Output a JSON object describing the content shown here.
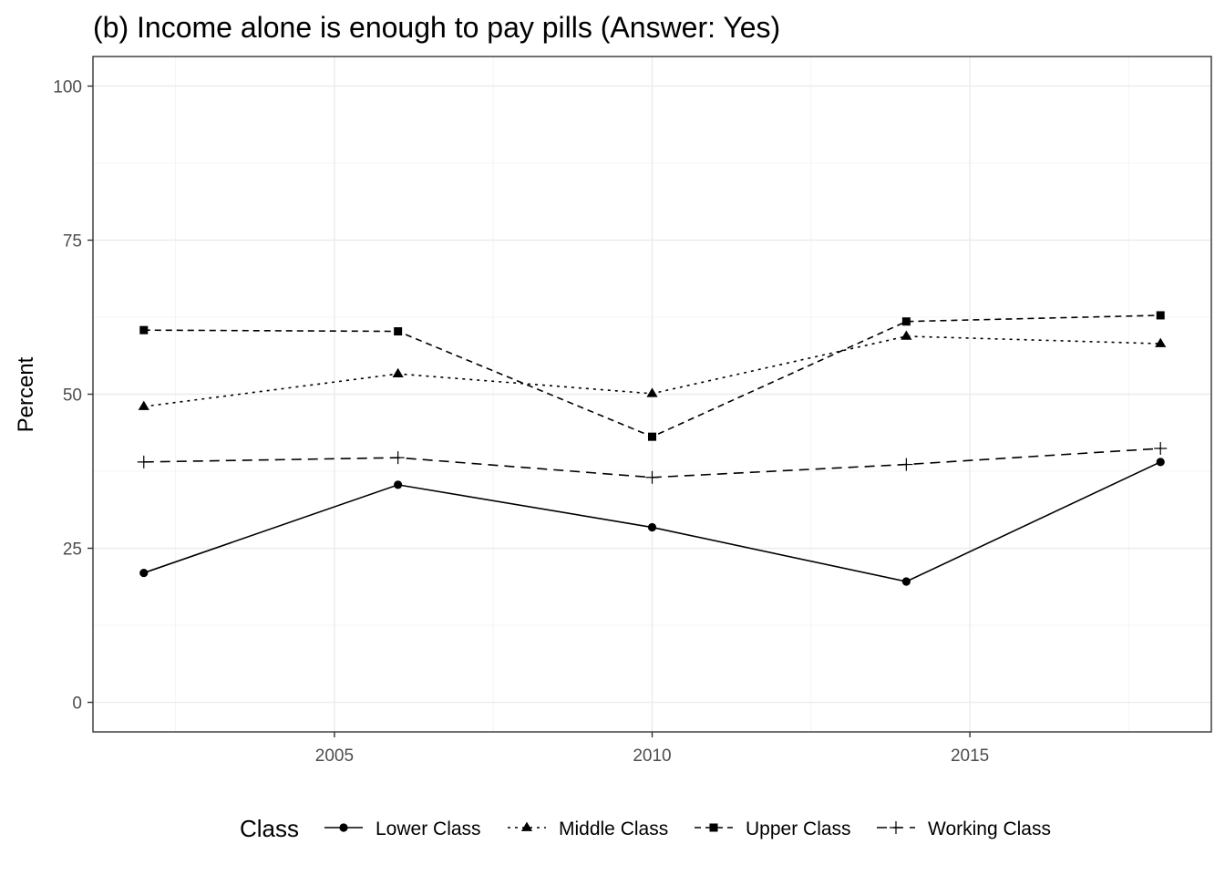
{
  "chart_data": {
    "type": "line",
    "title": "(b) Income alone is enough to pay pills (Answer: Yes)",
    "ylabel": "Percent",
    "xlabel": "",
    "x": [
      2002,
      2006,
      2010,
      2014,
      2018
    ],
    "xlim": [
      2001.2,
      2018.8
    ],
    "ylim": [
      -4.8,
      104.8
    ],
    "x_ticks": [
      2005,
      2010,
      2015
    ],
    "x_tick_labels": [
      "2005",
      "2010",
      "2015"
    ],
    "y_ticks": [
      0,
      25,
      50,
      75,
      100
    ],
    "y_tick_labels": [
      "0",
      "25",
      "50",
      "75",
      "100"
    ],
    "x_minor_ticks": [
      2002.5,
      2007.5,
      2012.5,
      2017.5
    ],
    "y_minor_ticks": [
      12.5,
      37.5,
      62.5,
      87.5
    ],
    "grid": true,
    "legend": {
      "title": "Class",
      "position": "bottom"
    },
    "series": [
      {
        "name": "Lower Class",
        "values": [
          21.0,
          35.3,
          28.4,
          19.6,
          39.0
        ],
        "marker": "circle",
        "linestyle": "solid"
      },
      {
        "name": "Middle Class",
        "values": [
          48.0,
          53.3,
          50.1,
          59.4,
          58.2
        ],
        "marker": "triangle",
        "linestyle": "dotted"
      },
      {
        "name": "Upper Class",
        "values": [
          60.4,
          60.2,
          43.1,
          61.8,
          62.8
        ],
        "marker": "square",
        "linestyle": "dashed"
      },
      {
        "name": "Working Class",
        "values": [
          39.0,
          39.7,
          36.5,
          38.6,
          41.2
        ],
        "marker": "plus",
        "linestyle": "longdash"
      }
    ]
  }
}
